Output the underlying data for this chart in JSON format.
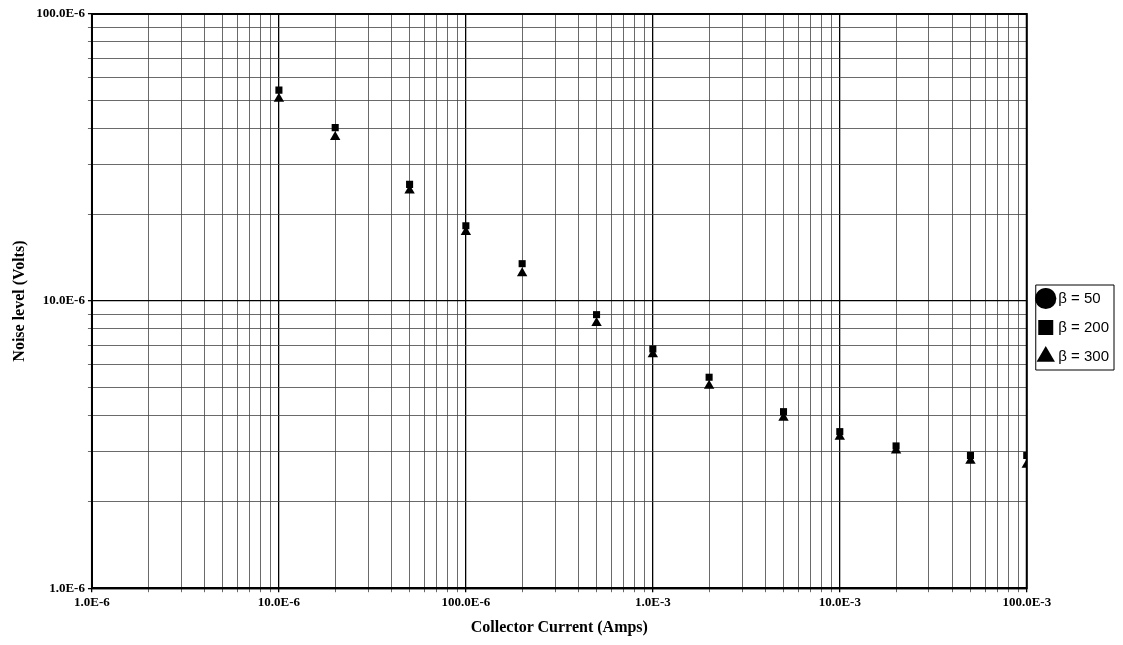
{
  "chart_data": {
    "type": "scatter",
    "xlabel": "Collector Current (Amps)",
    "ylabel": "Noise level (Volts)",
    "x": [
      1e-05,
      2e-05,
      5e-05,
      0.0001,
      0.0002,
      0.0005,
      0.001,
      0.002,
      0.005,
      0.01,
      0.02,
      0.05,
      0.1
    ],
    "series": [
      {
        "name": "β = 50",
        "color": "#000000",
        "marker": "circle",
        "values": [
          null,
          null,
          null,
          null,
          null,
          null,
          null,
          null,
          null,
          null,
          null,
          null,
          null
        ]
      },
      {
        "name": "β = 200",
        "color": "#000000",
        "marker": "square",
        "values": [
          5.43e-05,
          4.02e-05,
          2.55e-05,
          1.83e-05,
          1.35e-05,
          8.97e-06,
          6.81e-06,
          5.43e-06,
          4.12e-06,
          3.51e-06,
          3.13e-06,
          2.9e-06,
          2.9e-06
        ]
      },
      {
        "name": "β = 300",
        "color": "#000000",
        "marker": "triangle",
        "values": [
          5.07e-05,
          3.73e-05,
          2.43e-05,
          1.74e-05,
          1.25e-05,
          8.39e-06,
          6.53e-06,
          5.07e-06,
          3.92e-06,
          3.37e-06,
          3.02e-06,
          2.78e-06,
          2.69e-06
        ]
      }
    ],
    "log": "xy",
    "grid": true,
    "legend": "right",
    "xlim": [
      1e-06,
      0.1
    ],
    "xticks": [
      {
        "value": 1e-06,
        "label": "1.0E-6"
      },
      {
        "value": 2e-06,
        "label": null
      },
      {
        "value": 3e-06,
        "label": null
      },
      {
        "value": 4e-06,
        "label": null
      },
      {
        "value": 5e-06,
        "label": null
      },
      {
        "value": 6e-06,
        "label": null
      },
      {
        "value": 7e-06,
        "label": null
      },
      {
        "value": 8e-06,
        "label": null
      },
      {
        "value": 9e-06,
        "label": null
      },
      {
        "value": 1e-05,
        "label": "10.0E-6"
      },
      {
        "value": 2e-05,
        "label": null
      },
      {
        "value": 3e-05,
        "label": null
      },
      {
        "value": 4e-05,
        "label": null
      },
      {
        "value": 5e-05,
        "label": null
      },
      {
        "value": 6e-05,
        "label": null
      },
      {
        "value": 7e-05,
        "label": null
      },
      {
        "value": 8e-05,
        "label": null
      },
      {
        "value": 9e-05,
        "label": null
      },
      {
        "value": 0.0001,
        "label": "100.0E-6"
      },
      {
        "value": 0.0002,
        "label": null
      },
      {
        "value": 0.0003,
        "label": null
      },
      {
        "value": 0.0004,
        "label": null
      },
      {
        "value": 0.0005,
        "label": null
      },
      {
        "value": 0.0006,
        "label": null
      },
      {
        "value": 0.0007,
        "label": null
      },
      {
        "value": 0.0008,
        "label": null
      },
      {
        "value": 0.0009,
        "label": null
      },
      {
        "value": 0.001,
        "label": "1.0E-3"
      },
      {
        "value": 0.002,
        "label": null
      },
      {
        "value": 0.003,
        "label": null
      },
      {
        "value": 0.004,
        "label": null
      },
      {
        "value": 0.005,
        "label": null
      },
      {
        "value": 0.006,
        "label": null
      },
      {
        "value": 0.007,
        "label": null
      },
      {
        "value": 0.008,
        "label": null
      },
      {
        "value": 0.009,
        "label": null
      },
      {
        "value": 0.01,
        "label": "10.0E-3"
      },
      {
        "value": 0.02,
        "label": null
      },
      {
        "value": 0.03,
        "label": null
      },
      {
        "value": 0.04,
        "label": null
      },
      {
        "value": 0.05,
        "label": null
      },
      {
        "value": 0.06,
        "label": null
      },
      {
        "value": 0.07,
        "label": null
      },
      {
        "value": 0.08,
        "label": null
      },
      {
        "value": 0.09,
        "label": null
      },
      {
        "value": 0.1,
        "label": "100.0E-3"
      }
    ],
    "ylim": [
      1e-06,
      0.0001
    ],
    "yticks": [
      {
        "value": 1e-06,
        "label": "1.0E-6"
      },
      {
        "value": 2e-06,
        "label": null
      },
      {
        "value": 3e-06,
        "label": null
      },
      {
        "value": 4e-06,
        "label": null
      },
      {
        "value": 5e-06,
        "label": null
      },
      {
        "value": 6e-06,
        "label": null
      },
      {
        "value": 7e-06,
        "label": null
      },
      {
        "value": 8e-06,
        "label": null
      },
      {
        "value": 9e-06,
        "label": null
      },
      {
        "value": 1e-05,
        "label": "10.0E-6"
      },
      {
        "value": 2e-05,
        "label": null
      },
      {
        "value": 3e-05,
        "label": null
      },
      {
        "value": 4e-05,
        "label": null
      },
      {
        "value": 5e-05,
        "label": null
      },
      {
        "value": 6e-05,
        "label": null
      },
      {
        "value": 7e-05,
        "label": null
      },
      {
        "value": 8e-05,
        "label": null
      },
      {
        "value": 9e-05,
        "label": null
      },
      {
        "value": 0.0001,
        "label": "100.0E-6"
      }
    ]
  }
}
